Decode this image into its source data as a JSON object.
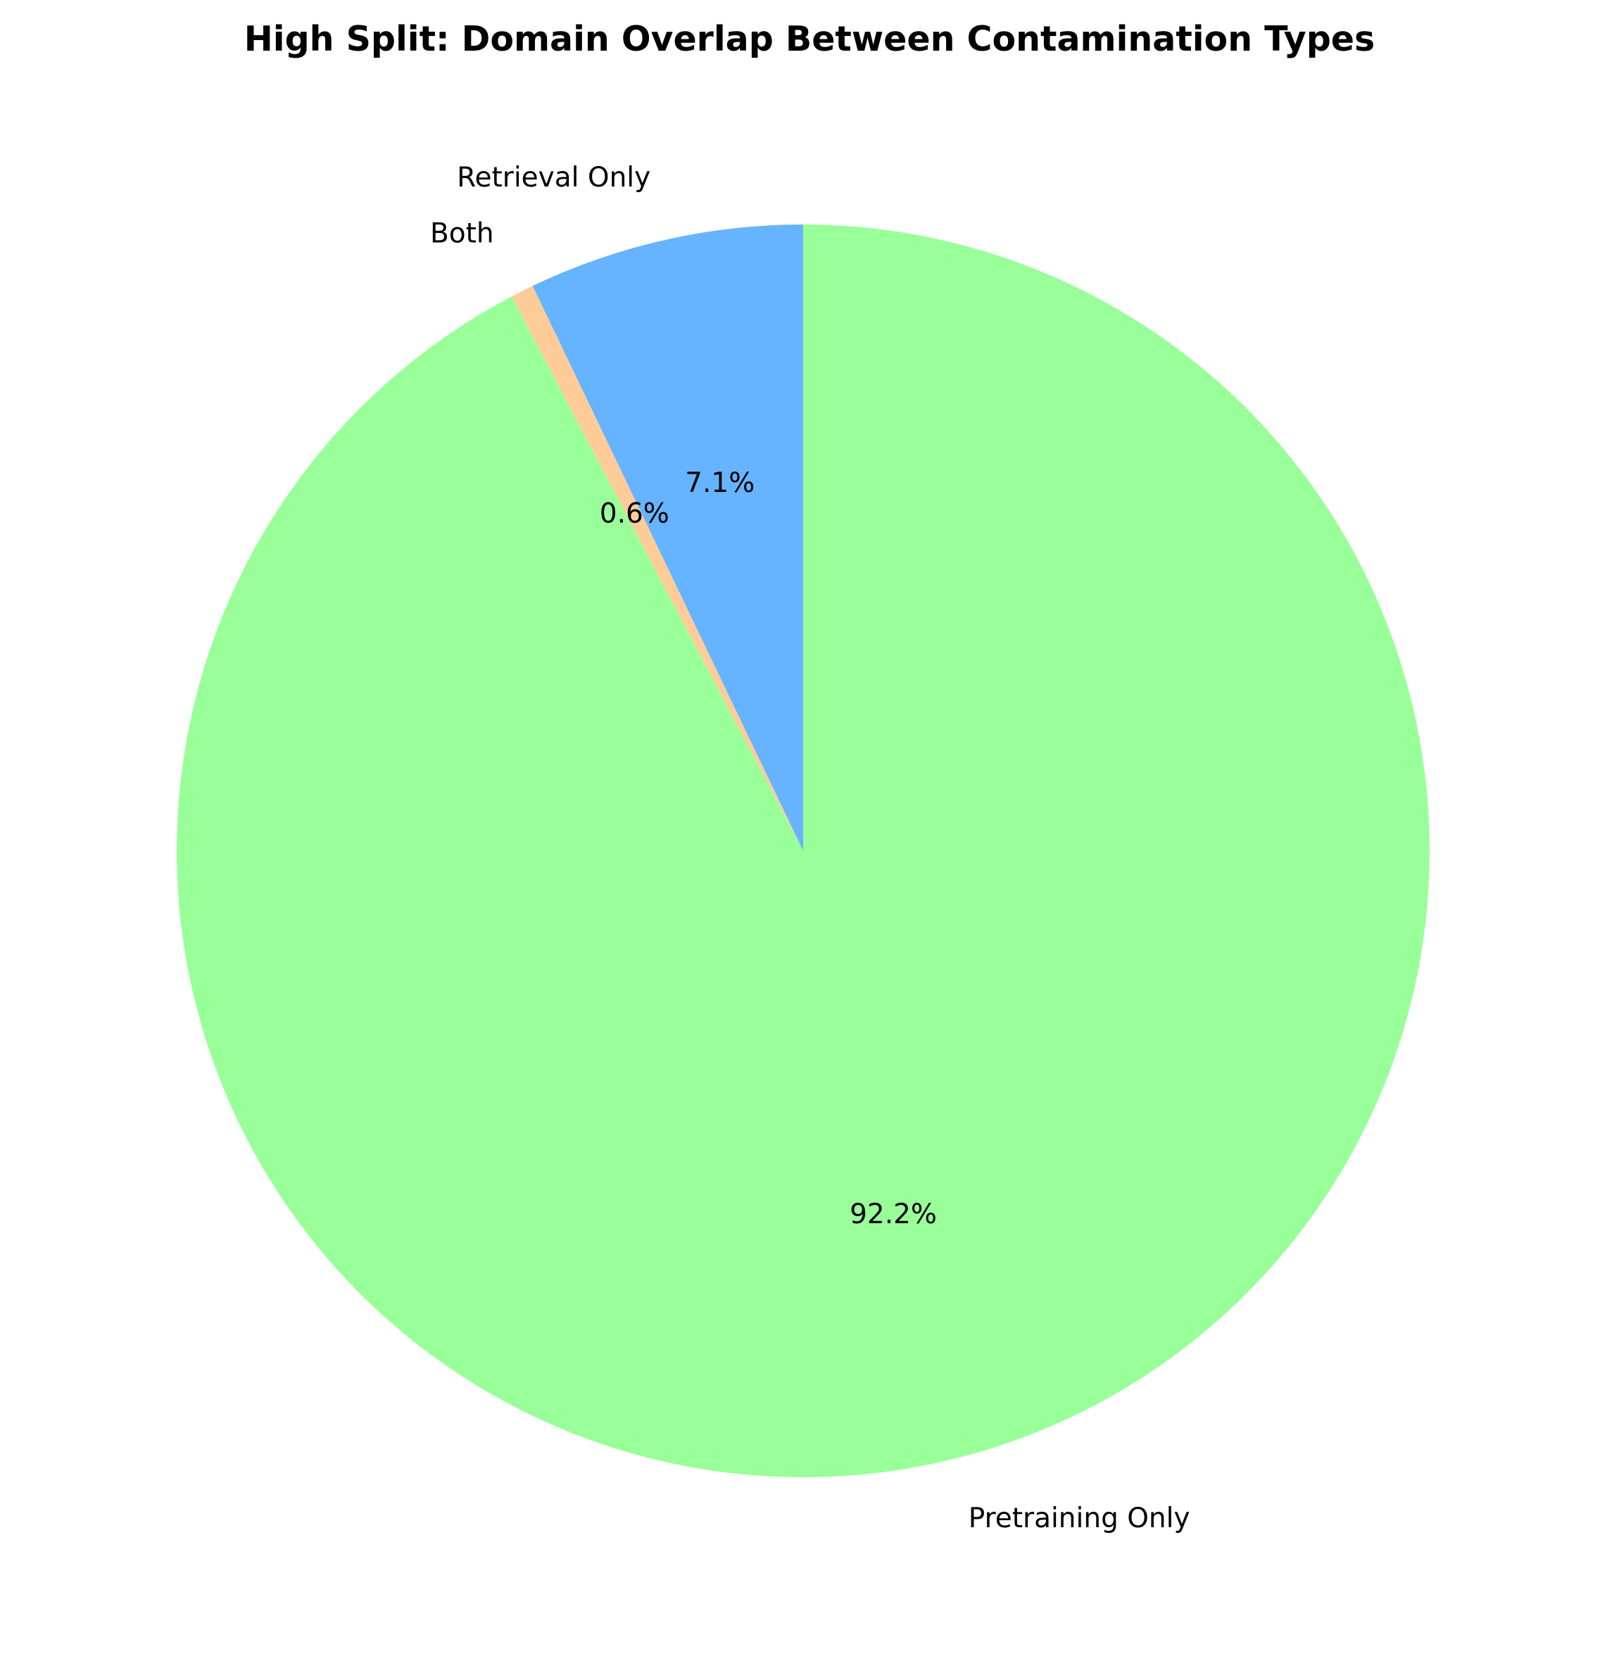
{
  "chart_data": {
    "type": "pie",
    "title": "High Split: Domain Overlap Between Contamination Types",
    "start_angle_deg": 90,
    "direction": "counterclockwise",
    "slices": [
      {
        "label": "Retrieval Only",
        "value": 7.1,
        "pct_label": "7.1%",
        "color": "#66b3ff"
      },
      {
        "label": "Both",
        "value": 0.6,
        "pct_label": "0.6%",
        "color": "#ffcc99"
      },
      {
        "label": "Pretraining Only",
        "value": 92.2,
        "pct_label": "92.2%",
        "color": "#99ff99"
      }
    ]
  }
}
